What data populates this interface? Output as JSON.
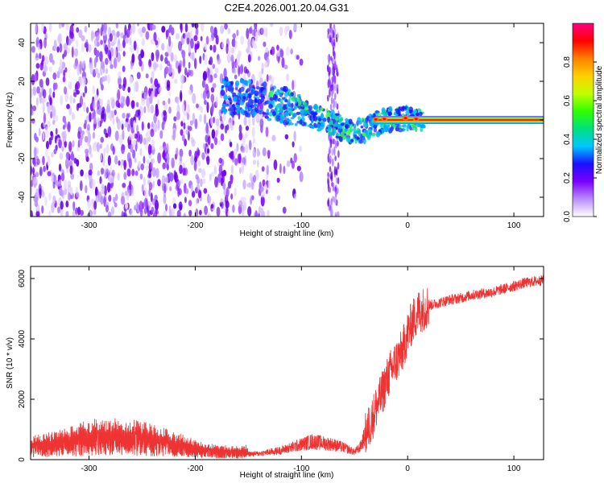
{
  "title": "C2E4.2026.001.20.04.G31",
  "chart_data": [
    {
      "type": "heatmap",
      "xlabel": "Height of straight line (km)",
      "ylabel": "Frequency (Hz)",
      "xlim": [
        -355,
        128
      ],
      "ylim": [
        -50,
        50
      ],
      "xticks": [
        -300,
        -200,
        -100,
        0,
        100
      ],
      "yticks": [
        -40,
        -20,
        0,
        20,
        40
      ],
      "colorbar": {
        "label": "Normalized spectral amplitude",
        "range": [
          0,
          1
        ],
        "ticks": [
          "0.0",
          "0.2",
          "0.4",
          "0.6",
          "0.8"
        ],
        "stops": [
          "#ffffff",
          "#b98cff",
          "#7a00ff",
          "#1a10ff",
          "#00c8ff",
          "#00e080",
          "#30ff00",
          "#c0ff00",
          "#ffd000",
          "#ff8000",
          "#ff0000",
          "#ff0080"
        ]
      },
      "trace": {
        "name": "signal frequency trace",
        "x": [
          -180,
          -160,
          -145,
          -130,
          -115,
          -100,
          -90,
          -80,
          -70,
          -60,
          -50,
          -40,
          -30,
          -20,
          -10,
          0,
          10,
          128
        ],
        "y": [
          12,
          12,
          11,
          9,
          7,
          4,
          2,
          0,
          -2,
          -5,
          -6,
          -5,
          -2,
          0,
          0,
          1,
          0.5,
          0
        ]
      },
      "noise_region_x": [
        -355,
        -130
      ],
      "noise_band_x": [
        -75,
        -65
      ]
    },
    {
      "type": "line",
      "xlabel": "Height of straight line (km)",
      "ylabel": "SNR (10 * v/v)",
      "xlim": [
        -355,
        128
      ],
      "ylim": [
        0,
        6400
      ],
      "xticks": [
        -300,
        -200,
        -100,
        0,
        100
      ],
      "yticks": [
        0,
        2000,
        4000,
        6000
      ],
      "series": [
        {
          "name": "SNR",
          "color": "#ee3333",
          "x": [
            -355,
            -330,
            -300,
            -280,
            -250,
            -220,
            -200,
            -180,
            -160,
            -140,
            -120,
            -100,
            -90,
            -80,
            -70,
            -60,
            -50,
            -45,
            -40,
            -35,
            -30,
            -25,
            -20,
            -15,
            -10,
            -5,
            0,
            5,
            10,
            20,
            30,
            40,
            50,
            60,
            70,
            80,
            90,
            100,
            110,
            128
          ],
          "y": [
            300,
            350,
            500,
            520,
            480,
            350,
            250,
            180,
            170,
            200,
            300,
            500,
            600,
            550,
            500,
            400,
            250,
            400,
            800,
            1200,
            1700,
            2100,
            2600,
            3000,
            3300,
            3600,
            4200,
            4600,
            4900,
            5100,
            5200,
            5300,
            5350,
            5450,
            5500,
            5550,
            5650,
            5750,
            5850,
            5950
          ]
        }
      ]
    }
  ]
}
